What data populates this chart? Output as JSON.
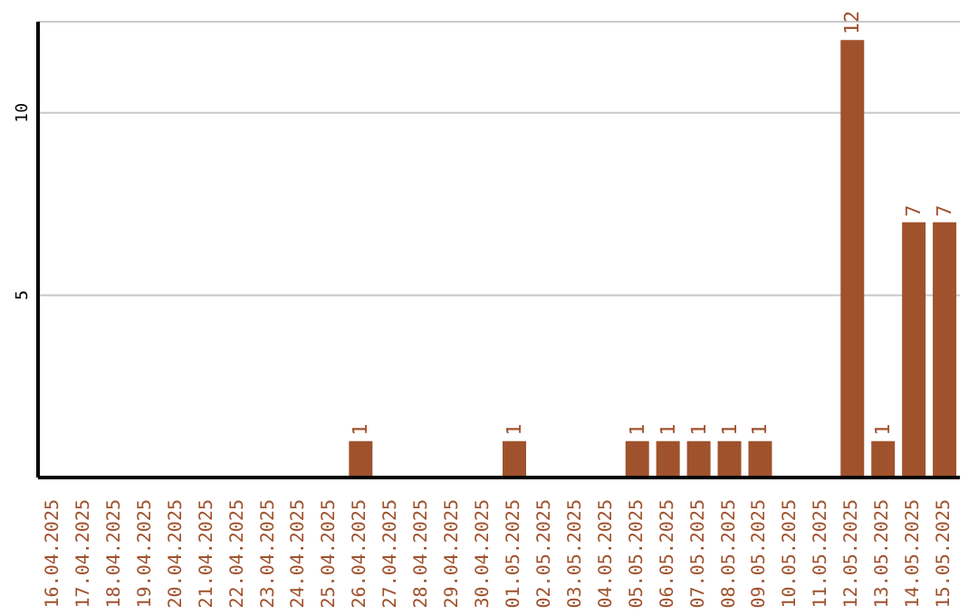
{
  "chart_data": {
    "type": "bar",
    "categories": [
      "16.04.2025",
      "17.04.2025",
      "18.04.2025",
      "19.04.2025",
      "20.04.2025",
      "21.04.2025",
      "22.04.2025",
      "23.04.2025",
      "24.04.2025",
      "25.04.2025",
      "26.04.2025",
      "27.04.2025",
      "28.04.2025",
      "29.04.2025",
      "30.04.2025",
      "01.05.2025",
      "02.05.2025",
      "03.05.2025",
      "04.05.2025",
      "05.05.2025",
      "06.05.2025",
      "07.05.2025",
      "08.05.2025",
      "09.05.2025",
      "10.05.2025",
      "11.05.2025",
      "12.05.2025",
      "13.05.2025",
      "14.05.2025",
      "15.05.2025"
    ],
    "values": [
      0,
      0,
      0,
      0,
      0,
      0,
      0,
      0,
      0,
      0,
      1,
      0,
      0,
      0,
      0,
      1,
      0,
      0,
      0,
      1,
      1,
      1,
      1,
      1,
      0,
      0,
      12,
      1,
      7,
      7
    ],
    "value_labels": [
      null,
      null,
      null,
      null,
      null,
      null,
      null,
      null,
      null,
      null,
      "1",
      null,
      null,
      null,
      null,
      "1",
      null,
      null,
      null,
      "1",
      "1",
      "1",
      "1",
      "1",
      null,
      null,
      "12",
      "1",
      "7",
      "7"
    ],
    "color": "#a0522d",
    "ylim": [
      0,
      12.5
    ],
    "yticks": [
      5,
      10
    ],
    "grid": "y"
  }
}
